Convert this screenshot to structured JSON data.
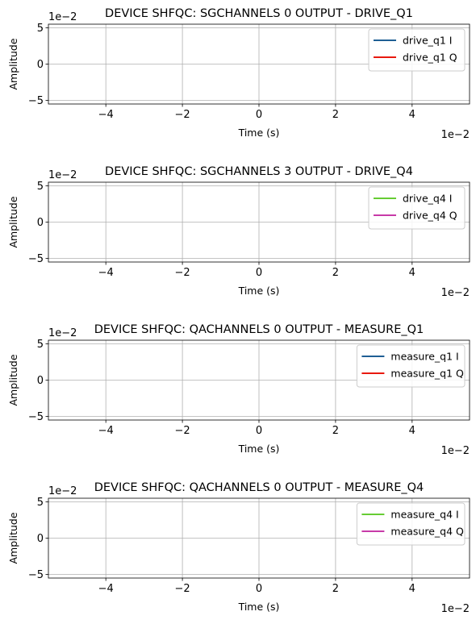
{
  "chart_data": [
    {
      "type": "line",
      "title": "DEVICE SHFQC: SGCHANNELS 0 OUTPUT - DRIVE_Q1",
      "xlabel": "Time (s)",
      "ylabel": "Amplitude",
      "x_offset_label": "1e−2",
      "y_offset_label": "1e−2",
      "xlim": [
        -5.5,
        5.5
      ],
      "ylim": [
        -5.5,
        5.5
      ],
      "xticks": [
        -4,
        -2,
        0,
        2,
        4
      ],
      "xtick_labels": [
        "−4",
        "−2",
        "0",
        "2",
        "4"
      ],
      "yticks": [
        -5,
        0,
        5
      ],
      "ytick_labels": [
        "−5",
        "0",
        "5"
      ],
      "grid": true,
      "legend_position": "top-right",
      "series": [
        {
          "name": "drive_q1 I",
          "color": "#1f5f94",
          "x": [],
          "y": []
        },
        {
          "name": "drive_q1 Q",
          "color": "#e8190e",
          "x": [],
          "y": []
        }
      ]
    },
    {
      "type": "line",
      "title": "DEVICE SHFQC: SGCHANNELS 3 OUTPUT - DRIVE_Q4",
      "xlabel": "Time (s)",
      "ylabel": "Amplitude",
      "x_offset_label": "1e−2",
      "y_offset_label": "1e−2",
      "xlim": [
        -5.5,
        5.5
      ],
      "ylim": [
        -5.5,
        5.5
      ],
      "xticks": [
        -4,
        -2,
        0,
        2,
        4
      ],
      "xtick_labels": [
        "−4",
        "−2",
        "0",
        "2",
        "4"
      ],
      "yticks": [
        -5,
        0,
        5
      ],
      "ytick_labels": [
        "−5",
        "0",
        "5"
      ],
      "grid": true,
      "legend_position": "top-right",
      "series": [
        {
          "name": "drive_q4 I",
          "color": "#66cc33",
          "x": [],
          "y": []
        },
        {
          "name": "drive_q4 Q",
          "color": "#c73aa8",
          "x": [],
          "y": []
        }
      ]
    },
    {
      "type": "line",
      "title": "DEVICE SHFQC: QACHANNELS 0 OUTPUT - MEASURE_Q1",
      "xlabel": "Time (s)",
      "ylabel": "Amplitude",
      "x_offset_label": "1e−2",
      "y_offset_label": "1e−2",
      "xlim": [
        -5.5,
        5.5
      ],
      "ylim": [
        -5.5,
        5.5
      ],
      "xticks": [
        -4,
        -2,
        0,
        2,
        4
      ],
      "xtick_labels": [
        "−4",
        "−2",
        "0",
        "2",
        "4"
      ],
      "yticks": [
        -5,
        0,
        5
      ],
      "ytick_labels": [
        "−5",
        "0",
        "5"
      ],
      "grid": true,
      "legend_position": "top-right",
      "series": [
        {
          "name": "measure_q1 I",
          "color": "#1f5f94",
          "x": [],
          "y": []
        },
        {
          "name": "measure_q1 Q",
          "color": "#e8190e",
          "x": [],
          "y": []
        }
      ]
    },
    {
      "type": "line",
      "title": "DEVICE SHFQC: QACHANNELS 0 OUTPUT - MEASURE_Q4",
      "xlabel": "Time (s)",
      "ylabel": "Amplitude",
      "x_offset_label": "1e−2",
      "y_offset_label": "1e−2",
      "xlim": [
        -5.5,
        5.5
      ],
      "ylim": [
        -5.5,
        5.5
      ],
      "xticks": [
        -4,
        -2,
        0,
        2,
        4
      ],
      "xtick_labels": [
        "−4",
        "−2",
        "0",
        "2",
        "4"
      ],
      "yticks": [
        -5,
        0,
        5
      ],
      "ytick_labels": [
        "−5",
        "0",
        "5"
      ],
      "grid": true,
      "legend_position": "top-right",
      "series": [
        {
          "name": "measure_q4 I",
          "color": "#66cc33",
          "x": [],
          "y": []
        },
        {
          "name": "measure_q4 Q",
          "color": "#c73aa8",
          "x": [],
          "y": []
        }
      ]
    }
  ]
}
